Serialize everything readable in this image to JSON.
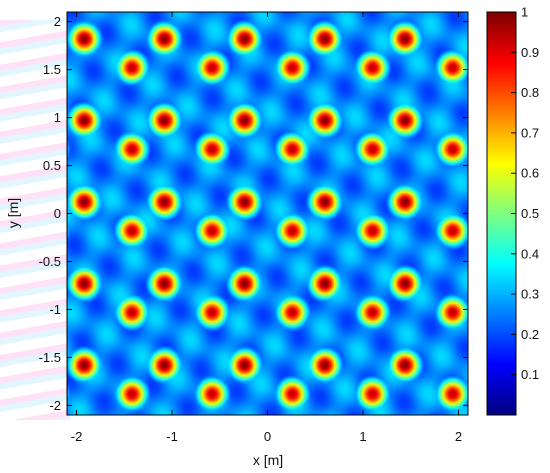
{
  "chart_data": {
    "type": "heatmap",
    "title": "",
    "xlabel": "x [m]",
    "ylabel": "y [m]",
    "xlim": [
      -2.1,
      2.1
    ],
    "ylim": [
      -2.1,
      2.1
    ],
    "xticks": [
      "-2",
      "-1",
      "0",
      "1",
      "2"
    ],
    "xtick_values": [
      -2,
      -1,
      0,
      1,
      2
    ],
    "yticks": [
      "2",
      "1.5",
      "1",
      "0.5",
      "0",
      "-0.5",
      "-1",
      "-1.5",
      "-2"
    ],
    "ytick_values": [
      2,
      1.5,
      1,
      0.5,
      0,
      -0.5,
      -1,
      -1.5,
      -2
    ],
    "colorbar": {
      "range": [
        0,
        1
      ],
      "ticks": [
        "1",
        "0.9",
        "0.8",
        "0.7",
        "0.6",
        "0.5",
        "0.4",
        "0.3",
        "0.2",
        "0.1"
      ],
      "tick_values": [
        1,
        0.9,
        0.8,
        0.7,
        0.6,
        0.5,
        0.4,
        0.3,
        0.2,
        0.1
      ],
      "colormap": "jet"
    },
    "peak_lattice": {
      "x_spacing": 0.84,
      "y_spacing": 0.85,
      "sublattice_a": {
        "x0": -1.92,
        "y0": 1.82,
        "value": 1.0
      },
      "sublattice_b": {
        "x0": -1.42,
        "y0": 1.52,
        "value": 0.95
      },
      "background_level": 0.2,
      "peak_width": 0.11
    },
    "colors": {
      "background": "#ffffff",
      "frame": "#000000"
    }
  }
}
